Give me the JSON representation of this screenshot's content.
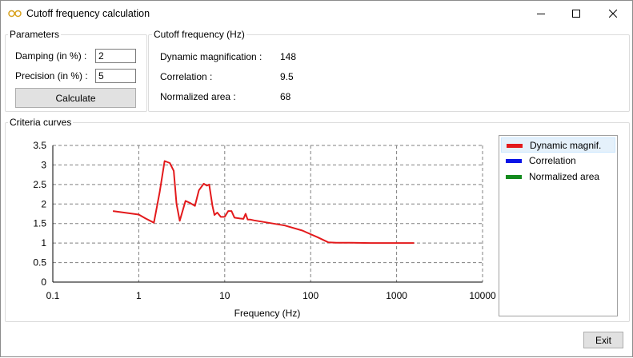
{
  "window": {
    "title": "Cutoff frequency calculation",
    "controls": [
      "minimize-icon",
      "maximize-icon",
      "close-icon"
    ]
  },
  "parameters": {
    "group_label": "Parameters",
    "damping_label": "Damping (in %) :",
    "damping_value": "2",
    "precision_label": "Precision (in %) :",
    "precision_value": "5",
    "calculate_label": "Calculate"
  },
  "cutoff": {
    "group_label": "Cutoff frequency (Hz)",
    "rows": [
      {
        "label": "Dynamic magnification :",
        "value": "148"
      },
      {
        "label": "Correlation :",
        "value": "9.5"
      },
      {
        "label": "Normalized area :",
        "value": "68"
      }
    ]
  },
  "criteria": {
    "group_label": "Criteria curves"
  },
  "legend": [
    {
      "name": "Dynamic magnif.",
      "color": "#e31a1c",
      "selected": true
    },
    {
      "name": "Correlation",
      "color": "#0a14e6",
      "selected": false
    },
    {
      "name": "Normalized area",
      "color": "#138a1d",
      "selected": false
    }
  ],
  "footer": {
    "exit_label": "Exit"
  },
  "chart_data": {
    "type": "line",
    "title": "",
    "xlabel": "Frequency (Hz)",
    "ylabel": "",
    "xscale": "log",
    "xlim": [
      0.1,
      10000
    ],
    "ylim": [
      0,
      3.5
    ],
    "x_ticks": [
      "0.1",
      "1",
      "10",
      "100",
      "1000",
      "10000"
    ],
    "y_ticks": [
      "0",
      "0.5",
      "1",
      "1.5",
      "2",
      "2.5",
      "3",
      "3.5"
    ],
    "grid": true,
    "legend_position": "right",
    "series": [
      {
        "name": "Dynamic magnif.",
        "color": "#e31a1c",
        "points": [
          [
            0.5,
            1.82
          ],
          [
            1.0,
            1.73
          ],
          [
            1.2,
            1.63
          ],
          [
            1.5,
            1.52
          ],
          [
            1.75,
            2.3
          ],
          [
            2.0,
            3.1
          ],
          [
            2.3,
            3.05
          ],
          [
            2.55,
            2.85
          ],
          [
            2.75,
            2.0
          ],
          [
            3.0,
            1.57
          ],
          [
            3.5,
            2.08
          ],
          [
            4.0,
            2.02
          ],
          [
            4.5,
            1.95
          ],
          [
            5.0,
            2.35
          ],
          [
            5.7,
            2.52
          ],
          [
            6.2,
            2.47
          ],
          [
            6.6,
            2.5
          ],
          [
            7.2,
            1.95
          ],
          [
            7.6,
            1.72
          ],
          [
            8.2,
            1.78
          ],
          [
            9.0,
            1.67
          ],
          [
            10.0,
            1.67
          ],
          [
            11.0,
            1.82
          ],
          [
            12.0,
            1.82
          ],
          [
            13.0,
            1.65
          ],
          [
            15.0,
            1.63
          ],
          [
            16.5,
            1.62
          ],
          [
            17.5,
            1.75
          ],
          [
            18.5,
            1.6
          ],
          [
            20.0,
            1.6
          ],
          [
            22.0,
            1.58
          ],
          [
            30.0,
            1.53
          ],
          [
            50.0,
            1.45
          ],
          [
            80.0,
            1.32
          ],
          [
            120.0,
            1.15
          ],
          [
            160.0,
            1.02
          ],
          [
            200.0,
            1.01
          ],
          [
            300.0,
            1.01
          ],
          [
            500.0,
            1.0
          ],
          [
            1000.0,
            1.0
          ],
          [
            1600.0,
            1.0
          ]
        ]
      },
      {
        "name": "Correlation",
        "color": "#0a14e6",
        "points": []
      },
      {
        "name": "Normalized area",
        "color": "#138a1d",
        "points": []
      }
    ]
  }
}
